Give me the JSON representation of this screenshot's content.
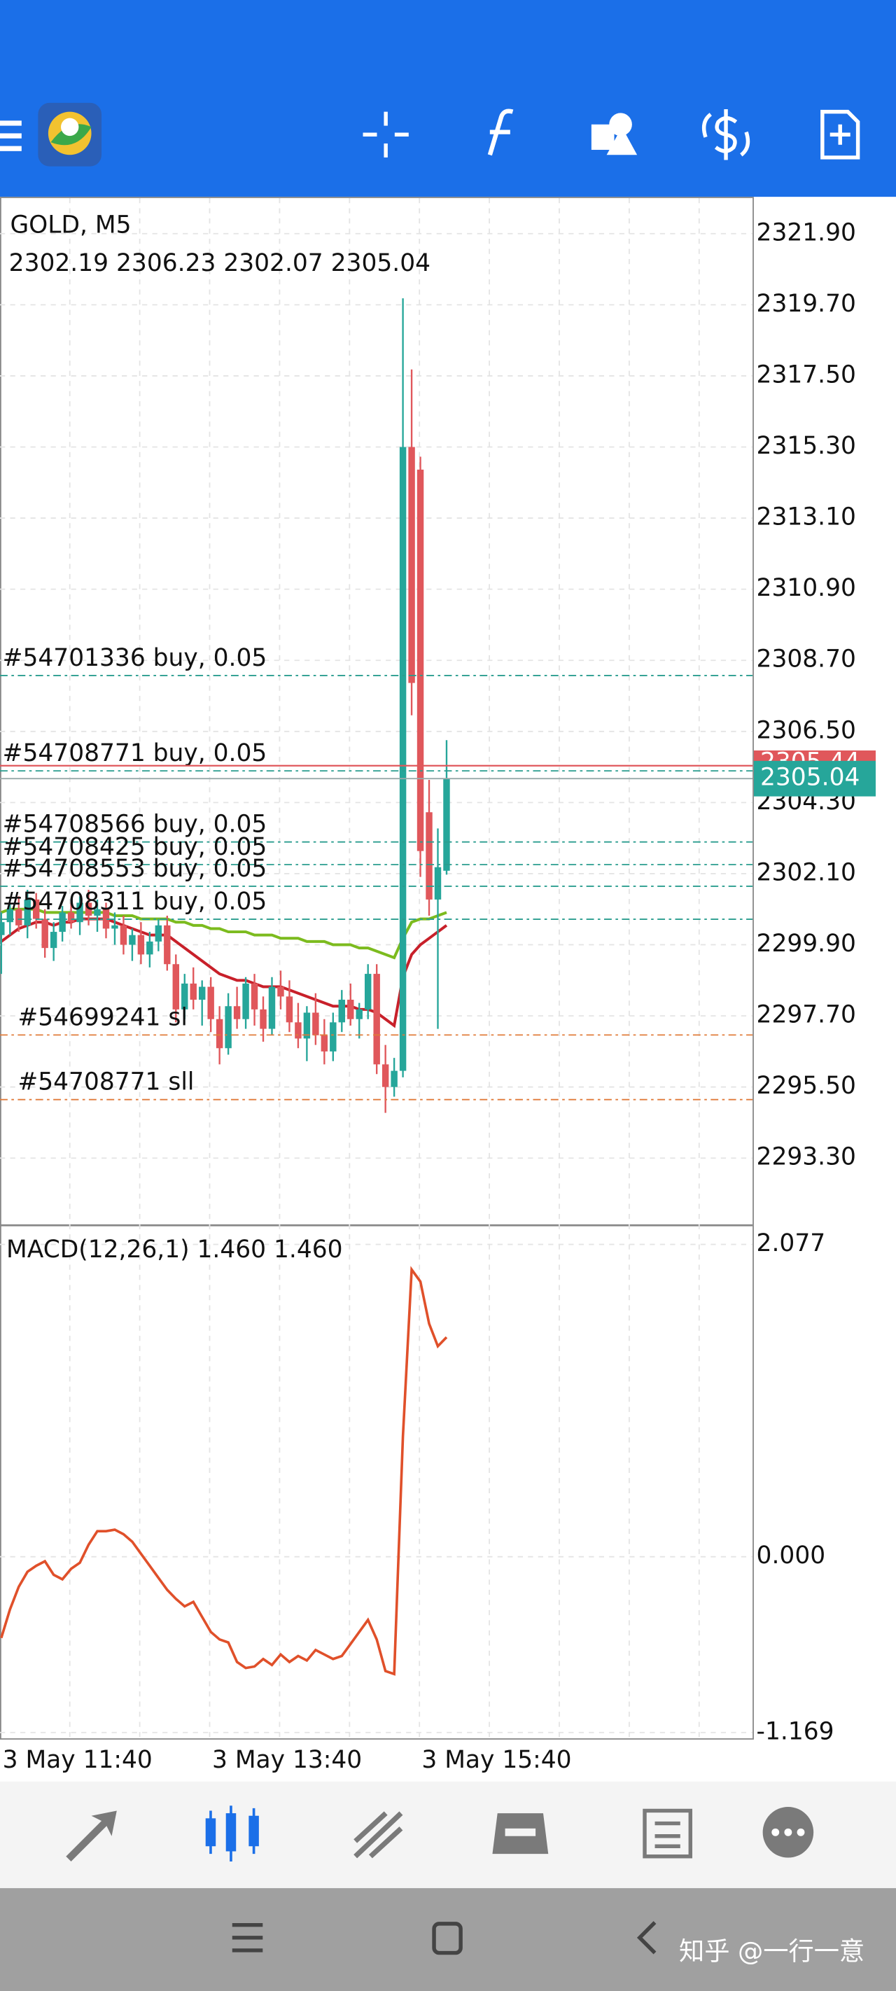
{
  "chart_data": [
    {
      "type": "candlestick",
      "title": "GOLD, M5",
      "subtitle": "2302.19 2306.23 2302.07 2305.04",
      "open": [
        2300.2,
        2300.6,
        2301.0,
        2300.5,
        2301.3,
        2300.7,
        2299.8,
        2300.3,
        2300.9,
        2300.6,
        2301.2,
        2300.8,
        2301.0,
        2300.4,
        2300.5,
        2299.9,
        2300.2,
        2299.6,
        2300.0,
        2300.5,
        2299.3,
        2297.9,
        2298.7,
        2298.2,
        2298.6,
        2297.6,
        2296.7,
        2298.0,
        2297.6,
        2298.7,
        2297.9,
        2297.3,
        2298.6,
        2298.3,
        2297.5,
        2297.0,
        2297.8,
        2297.1,
        2296.6,
        2297.5,
        2298.2,
        2297.6,
        2297.9,
        2299.0,
        2296.2,
        2295.5,
        2296.0,
        2315.3,
        2314.6,
        2304.0,
        2301.3,
        2302.19
      ],
      "high": [
        2300.9,
        2301.2,
        2301.4,
        2301.6,
        2301.5,
        2301.0,
        2300.6,
        2301.1,
        2301.2,
        2301.4,
        2301.6,
        2301.3,
        2301.2,
        2300.9,
        2300.8,
        2300.4,
        2300.6,
        2300.3,
        2300.7,
        2300.8,
        2299.6,
        2299.0,
        2299.2,
        2298.8,
        2298.9,
        2298.0,
        2298.4,
        2298.6,
        2298.9,
        2299.0,
        2298.3,
        2298.9,
        2299.1,
        2298.8,
        2298.1,
        2298.0,
        2298.4,
        2297.6,
        2297.8,
        2298.5,
        2298.7,
        2298.1,
        2299.3,
        2299.3,
        2296.8,
        2296.4,
        2319.9,
        2317.7,
        2315.0,
        2305.0,
        2303.5,
        2306.23
      ],
      "low": [
        2299.0,
        2300.2,
        2300.3,
        2300.1,
        2300.4,
        2299.5,
        2299.4,
        2300.0,
        2300.4,
        2300.2,
        2300.5,
        2300.3,
        2300.1,
        2299.9,
        2299.6,
        2299.4,
        2299.3,
        2299.2,
        2299.7,
        2299.1,
        2297.5,
        2297.6,
        2297.9,
        2297.4,
        2297.2,
        2296.2,
        2296.5,
        2297.3,
        2297.3,
        2297.4,
        2296.9,
        2297.1,
        2297.9,
        2297.2,
        2296.7,
        2296.3,
        2296.8,
        2296.2,
        2296.3,
        2297.2,
        2297.4,
        2297.0,
        2297.6,
        2295.9,
        2294.7,
        2295.2,
        2295.8,
        2307.0,
        2302.0,
        2300.8,
        2297.3,
        2302.07
      ],
      "close": [
        2300.6,
        2301.0,
        2300.5,
        2301.3,
        2300.7,
        2299.8,
        2300.3,
        2300.9,
        2300.6,
        2301.2,
        2300.8,
        2301.0,
        2300.4,
        2300.5,
        2299.9,
        2300.2,
        2299.6,
        2300.0,
        2300.5,
        2299.3,
        2297.9,
        2298.7,
        2298.2,
        2298.6,
        2297.6,
        2296.7,
        2298.0,
        2297.6,
        2298.7,
        2297.9,
        2297.3,
        2298.6,
        2298.3,
        2297.5,
        2297.0,
        2297.8,
        2297.1,
        2296.6,
        2297.5,
        2298.2,
        2297.6,
        2297.9,
        2299.0,
        2296.2,
        2295.5,
        2296.0,
        2315.3,
        2308.0,
        2302.8,
        2301.3,
        2302.3,
        2305.04
      ],
      "up_color": "#26a69a",
      "down_color": "#e0575b",
      "lines": [
        {
          "color": "#7cbb1e",
          "values": [
            2300.9,
            2301.0,
            2301.0,
            2301.0,
            2301.0,
            2300.9,
            2300.9,
            2300.9,
            2300.9,
            2300.9,
            2300.9,
            2300.9,
            2300.9,
            2300.8,
            2300.8,
            2300.8,
            2300.7,
            2300.7,
            2300.7,
            2300.7,
            2300.6,
            2300.6,
            2300.5,
            2300.5,
            2300.4,
            2300.4,
            2300.3,
            2300.3,
            2300.3,
            2300.2,
            2300.2,
            2300.2,
            2300.1,
            2300.1,
            2300.1,
            2300.0,
            2300.0,
            2300.0,
            2299.9,
            2299.9,
            2299.9,
            2299.8,
            2299.8,
            2299.7,
            2299.6,
            2299.5,
            2300.1,
            2300.6,
            2300.7,
            2300.7,
            2300.8,
            2300.9
          ]
        },
        {
          "color": "#c8202a",
          "values": [
            2300.0,
            2300.2,
            2300.4,
            2300.5,
            2300.6,
            2300.6,
            2300.5,
            2300.6,
            2300.6,
            2300.7,
            2300.7,
            2300.7,
            2300.7,
            2300.6,
            2300.5,
            2300.4,
            2300.3,
            2300.2,
            2300.2,
            2300.2,
            2300.0,
            2299.8,
            2299.6,
            2299.4,
            2299.2,
            2299.0,
            2298.9,
            2298.8,
            2298.8,
            2298.7,
            2298.6,
            2298.6,
            2298.6,
            2298.5,
            2298.4,
            2298.3,
            2298.2,
            2298.1,
            2298.0,
            2298.0,
            2298.0,
            2297.9,
            2297.9,
            2297.8,
            2297.6,
            2297.4,
            2298.9,
            2299.6,
            2299.9,
            2300.1,
            2300.3,
            2300.5
          ]
        }
      ],
      "orders": [
        {
          "label": "#54701336 buy, 0.05",
          "price": 2308.23,
          "color": "#2a9d8f"
        },
        {
          "label": "#54708771 buy, 0.05",
          "price": 2305.28,
          "color": "#2a9d8f"
        },
        {
          "label": "#54708566 buy, 0.05",
          "price": 2303.08,
          "color": "#2a9d8f"
        },
        {
          "label": "#54708425 buy, 0.05",
          "price": 2302.38,
          "color": "#2a9d8f"
        },
        {
          "label": "#54708553 buy, 0.05",
          "price": 2301.71,
          "color": "#2a9d8f"
        },
        {
          "label": "#54708311 buy, 0.05",
          "price": 2300.69,
          "color": "#2a9d8f"
        },
        {
          "label": "#54699241 sl",
          "price": 2297.11,
          "color": "#e07b3a"
        },
        {
          "label": "#54708771 sll",
          "price": 2295.11,
          "color": "#e07b3a"
        }
      ],
      "ask": 2305.44,
      "ask_color": "#e0575b",
      "bid": 2305.04,
      "bid_color": "#26a69a",
      "ylim": [
        2291.22,
        2323.04
      ],
      "yticks": [
        {
          "value": 2321.9,
          "label": "2321.90"
        },
        {
          "value": 2319.7,
          "label": "2319.70"
        },
        {
          "value": 2317.5,
          "label": "2317.50"
        },
        {
          "value": 2315.3,
          "label": "2315.30"
        },
        {
          "value": 2313.1,
          "label": "2313.10"
        },
        {
          "value": 2310.9,
          "label": "2310.90"
        },
        {
          "value": 2308.7,
          "label": "2308.70"
        },
        {
          "value": 2306.5,
          "label": "2306.50"
        },
        {
          "value": 2304.3,
          "label": "2304.30"
        },
        {
          "value": 2302.1,
          "label": "2302.10"
        },
        {
          "value": 2299.9,
          "label": "2299.90"
        },
        {
          "value": 2297.7,
          "label": "2297.70"
        },
        {
          "value": 2295.5,
          "label": "2295.50"
        },
        {
          "value": 2293.3,
          "label": "2293.30"
        }
      ],
      "grid": true
    },
    {
      "type": "line",
      "title": "MACD(12,26,1) 1.460 1.460",
      "color": "#e0502a",
      "categories": [
        "3 May 11:40",
        null,
        null,
        null,
        null,
        null,
        null,
        null,
        null,
        null,
        null,
        null,
        null,
        null,
        null,
        null,
        null,
        null,
        null,
        null,
        null,
        null,
        null,
        null,
        "3 May 13:40",
        null,
        null,
        null,
        null,
        null,
        null,
        null,
        null,
        null,
        null,
        null,
        null,
        null,
        null,
        null,
        null,
        null,
        null,
        null,
        null,
        null,
        null,
        null,
        "3 May 15:40",
        null,
        null,
        null
      ],
      "values": [
        -0.54,
        -0.35,
        -0.2,
        -0.1,
        -0.06,
        -0.03,
        -0.12,
        -0.15,
        -0.08,
        -0.04,
        0.08,
        0.17,
        0.17,
        0.18,
        0.15,
        0.1,
        0.02,
        -0.06,
        -0.14,
        -0.22,
        -0.28,
        -0.33,
        -0.3,
        -0.4,
        -0.5,
        -0.55,
        -0.57,
        -0.7,
        -0.74,
        -0.73,
        -0.68,
        -0.72,
        -0.65,
        -0.7,
        -0.66,
        -0.69,
        -0.62,
        -0.65,
        -0.68,
        -0.66,
        -0.58,
        -0.5,
        -0.42,
        -0.55,
        -0.76,
        -0.78,
        0.8,
        1.91,
        1.83,
        1.55,
        1.4,
        1.46
      ],
      "ylim": [
        -1.216,
        2.204
      ],
      "yticks": [
        2.077,
        {
          "value": 0,
          "label": "0.000"
        },
        -1.169
      ],
      "grid": true
    }
  ],
  "watermark": "知乎 @一行一意"
}
